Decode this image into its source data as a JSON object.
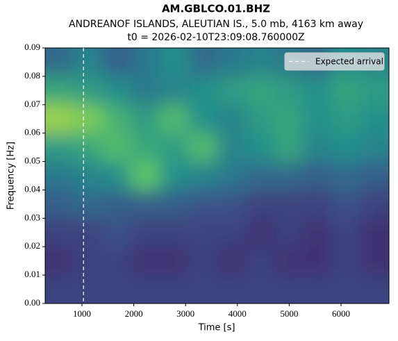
{
  "chart_data": {
    "type": "heatmap",
    "title": "AM.GBLCO.01.BHZ",
    "subtitle": "ANDREANOF ISLANDS, ALEUTIAN IS., 5.0 mb, 4163 km away",
    "annotation": "t0 = 2026-02-10T23:09:08.760000Z",
    "xlabel": "Time [s]",
    "ylabel": "Frequency [Hz]",
    "colormap": "viridis",
    "x": [
      566,
      1119,
      1672,
      2225,
      2778,
      3331,
      3884,
      4437,
      4989,
      5542,
      6095,
      6648
    ],
    "y": [
      0.085,
      0.075,
      0.065,
      0.055,
      0.045,
      0.035,
      0.025,
      0.015,
      0.005
    ],
    "z": [
      [
        0.35,
        0.45,
        0.3,
        0.4,
        0.5,
        0.35,
        0.4,
        0.45,
        0.4,
        0.35,
        0.5,
        0.45
      ],
      [
        0.6,
        0.55,
        0.5,
        0.4,
        0.45,
        0.5,
        0.55,
        0.6,
        0.55,
        0.5,
        0.6,
        0.55
      ],
      [
        0.85,
        0.8,
        0.65,
        0.55,
        0.7,
        0.5,
        0.45,
        0.55,
        0.6,
        0.5,
        0.55,
        0.5
      ],
      [
        0.55,
        0.6,
        0.7,
        0.6,
        0.55,
        0.7,
        0.45,
        0.5,
        0.6,
        0.45,
        0.5,
        0.45
      ],
      [
        0.4,
        0.45,
        0.5,
        0.75,
        0.5,
        0.45,
        0.4,
        0.35,
        0.35,
        0.3,
        0.35,
        0.3
      ],
      [
        0.3,
        0.35,
        0.3,
        0.3,
        0.3,
        0.25,
        0.25,
        0.2,
        0.2,
        0.2,
        0.25,
        0.2
      ],
      [
        0.2,
        0.2,
        0.25,
        0.2,
        0.2,
        0.2,
        0.2,
        0.15,
        0.2,
        0.15,
        0.2,
        0.15
      ],
      [
        0.15,
        0.2,
        0.2,
        0.15,
        0.15,
        0.2,
        0.15,
        0.2,
        0.15,
        0.15,
        0.2,
        0.15
      ],
      [
        0.2,
        0.2,
        0.2,
        0.2,
        0.2,
        0.2,
        0.2,
        0.2,
        0.2,
        0.2,
        0.2,
        0.2
      ]
    ],
    "marker": {
      "name": "Expected arrival",
      "x": 1030,
      "color": "#ffffff"
    },
    "legend": "upper right",
    "xlim": [
      290,
      6925
    ],
    "ylim": [
      0,
      0.09
    ],
    "xticks": [
      1000,
      2000,
      3000,
      4000,
      5000,
      6000
    ],
    "yticks": [
      {
        "value": 0,
        "label": "0.00"
      },
      {
        "value": 0.01,
        "label": "0.01"
      },
      {
        "value": 0.02,
        "label": "0.02"
      },
      {
        "value": 0.03,
        "label": "0.03"
      },
      {
        "value": 0.04,
        "label": "0.04"
      },
      {
        "value": 0.05,
        "label": "0.05"
      },
      {
        "value": 0.06,
        "label": "0.06"
      },
      {
        "value": 0.07,
        "label": "0.07"
      },
      {
        "value": 0.08,
        "label": "0.08"
      },
      {
        "value": 0.09,
        "label": "0.09"
      }
    ]
  }
}
